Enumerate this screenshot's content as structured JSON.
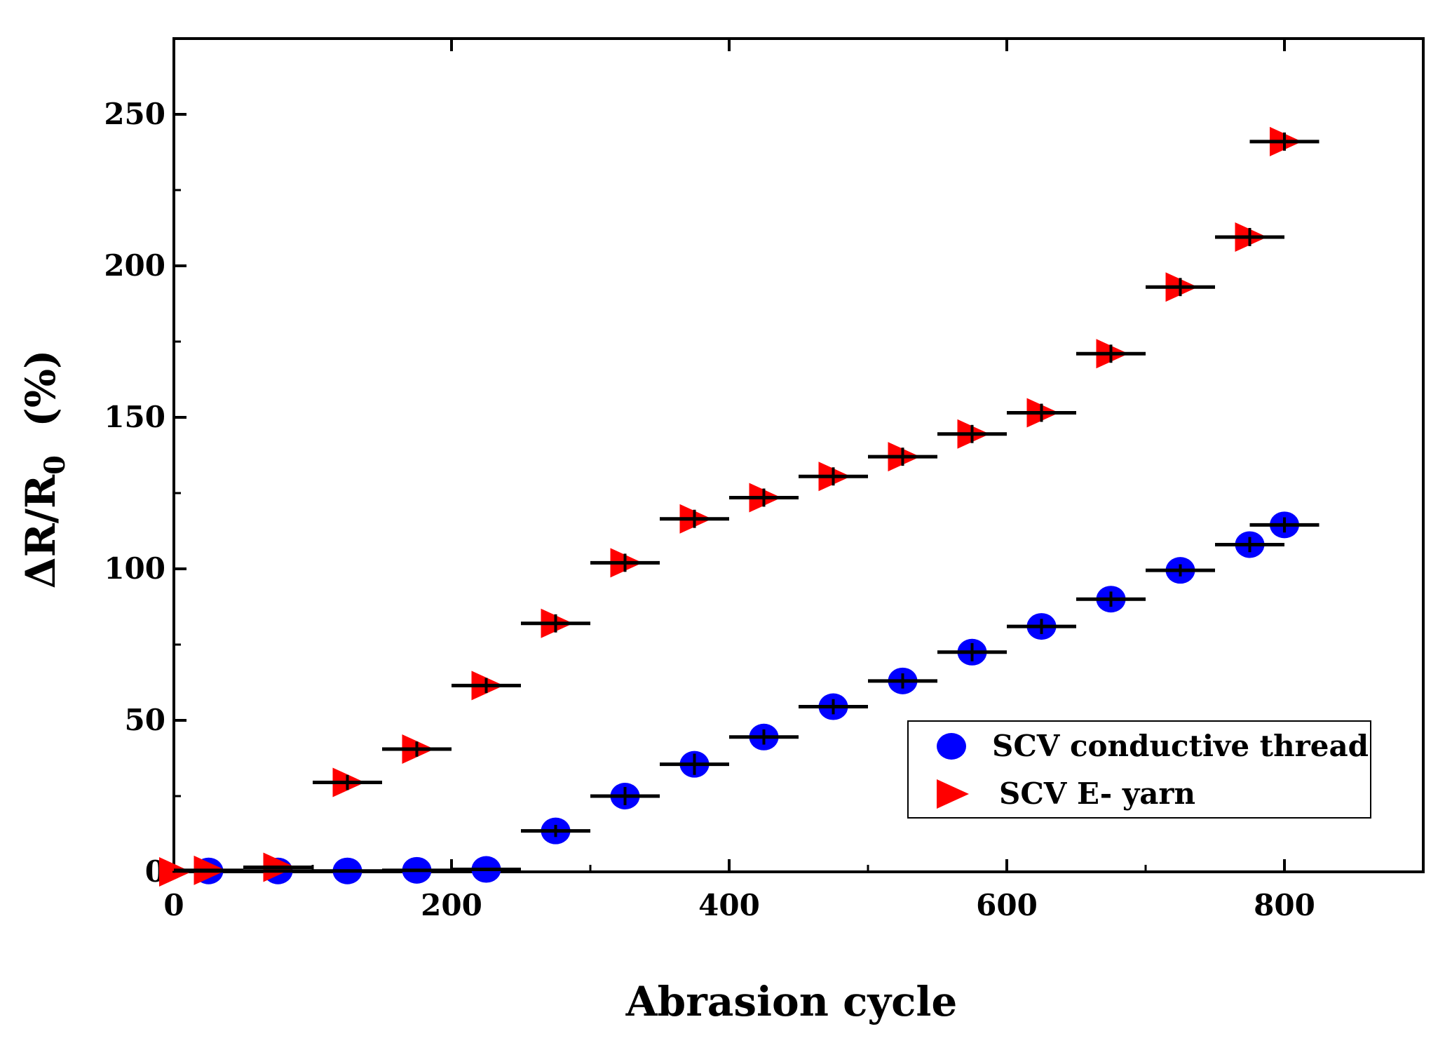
{
  "chart_data": {
    "type": "scatter",
    "xlabel": "Abrasion cycle",
    "ylabel_parts": {
      "main": "ΔR/R",
      "sub": "0",
      "unit": "(%)"
    },
    "xlim": [
      0,
      900
    ],
    "ylim": [
      0,
      275
    ],
    "x_ticks": [
      0,
      200,
      400,
      600,
      800
    ],
    "x_tick_labels": [
      "0",
      "200",
      "400",
      "600",
      "800"
    ],
    "x_minor_ticks": [
      100,
      300,
      500,
      700,
      900
    ],
    "y_ticks": [
      0,
      50,
      100,
      150,
      200,
      250
    ],
    "y_tick_labels": [
      "0",
      "50",
      "100",
      "150",
      "200",
      "250"
    ],
    "y_minor_ticks": [
      25,
      75,
      125,
      175,
      225
    ],
    "grid": false,
    "legend_position": "lower-right",
    "series": [
      {
        "name": "SCV conductive thread",
        "marker": "circle",
        "color": "#0000ff",
        "x": [
          25,
          75,
          125,
          175,
          225,
          275,
          325,
          375,
          425,
          475,
          525,
          575,
          625,
          675,
          725,
          775,
          800
        ],
        "y": [
          0.3,
          0.3,
          0.3,
          0.5,
          0.8,
          13.5,
          25,
          35.5,
          44.5,
          54.5,
          63,
          72.5,
          81,
          90,
          99.5,
          108,
          114.5
        ],
        "y_err": [
          0.3,
          0.3,
          0.3,
          0.3,
          0.3,
          2,
          3,
          3.5,
          2.5,
          2.5,
          2.5,
          3,
          2.5,
          2.5,
          2,
          2.5,
          2.5
        ],
        "x_err": [
          25,
          25,
          25,
          25,
          25,
          25,
          25,
          25,
          25,
          25,
          25,
          25,
          25,
          25,
          25,
          25,
          25
        ]
      },
      {
        "name": "SCV E- yarn",
        "marker": "triangle-right",
        "color": "#ff0000",
        "x": [
          0,
          25,
          75,
          125,
          175,
          225,
          275,
          325,
          375,
          425,
          475,
          525,
          575,
          625,
          675,
          725,
          775,
          800
        ],
        "y": [
          0,
          0.5,
          1.5,
          29.5,
          40.5,
          61.5,
          82,
          102,
          116.5,
          123.5,
          130.5,
          137,
          144.5,
          151.5,
          171,
          193,
          209.5,
          241
        ],
        "y_err": [
          0.3,
          0.3,
          0.5,
          2.5,
          2.5,
          2.5,
          3,
          3,
          3,
          3,
          3,
          3,
          3,
          3,
          3,
          3,
          3,
          3
        ],
        "x_err": [
          0,
          25,
          25,
          25,
          25,
          25,
          25,
          25,
          25,
          25,
          25,
          25,
          25,
          25,
          25,
          25,
          25,
          25
        ]
      }
    ]
  }
}
